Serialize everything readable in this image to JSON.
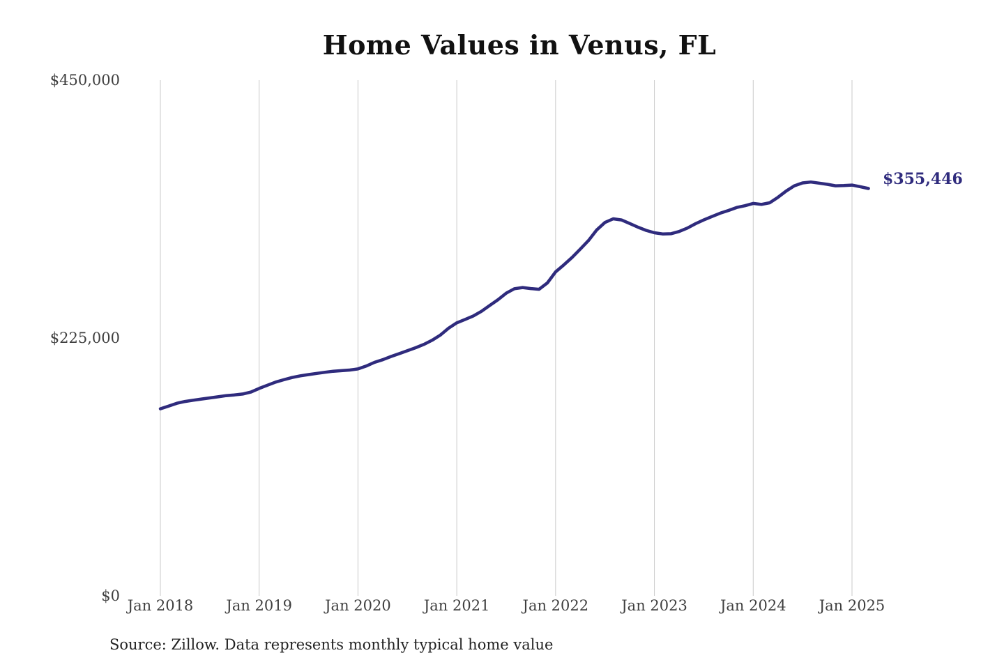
{
  "chart_data": {
    "type": "line",
    "title": "Home Values in Venus, FL",
    "source_note": "Source: Zillow. Data represents monthly typical home value",
    "xlabel": "",
    "ylabel": "",
    "frequency": "monthly",
    "x_start": "Jan 2018",
    "x_end": "Mar 2025",
    "x_tick_labels": [
      "Jan 2018",
      "Jan 2019",
      "Jan 2020",
      "Jan 2021",
      "Jan 2022",
      "Jan 2023",
      "Jan 2024",
      "Jan 2025"
    ],
    "y_tick_labels": [
      "$0",
      "$225,000",
      "$450,000"
    ],
    "y_tick_values": [
      0,
      225000,
      450000
    ],
    "ylim": [
      0,
      450000
    ],
    "grid": "vertical-only",
    "legend": "none",
    "end_label": "$355,446",
    "end_value": 355446,
    "series": [
      {
        "name": "Typical home value",
        "values": [
          163200,
          165600,
          168000,
          169600,
          170700,
          171700,
          172700,
          173700,
          174700,
          175300,
          176100,
          177800,
          181000,
          183800,
          186500,
          188600,
          190500,
          192000,
          193100,
          194100,
          195100,
          196000,
          196500,
          197000,
          198000,
          200500,
          203700,
          206000,
          208800,
          211300,
          213900,
          216500,
          219400,
          223000,
          227500,
          233500,
          238200,
          241200,
          244200,
          248300,
          253400,
          258400,
          264100,
          268000,
          269000,
          268100,
          267500,
          273000,
          282700,
          288800,
          295300,
          302600,
          310100,
          319300,
          325800,
          329000,
          328000,
          324900,
          321700,
          318900,
          316800,
          315800,
          316000,
          317900,
          320900,
          324700,
          328000,
          331000,
          333900,
          336300,
          338900,
          340400,
          342400,
          341600,
          343000,
          347700,
          353200,
          357800,
          360300,
          361100,
          360100,
          359100,
          357800,
          358000,
          358400,
          357000,
          355446
        ]
      }
    ],
    "colors": {
      "line": "#2f2b7d",
      "grid": "#c9c9c9",
      "tick_text": "#3f3f3f",
      "title_text": "#111111",
      "source_text": "#222222",
      "background": "#ffffff"
    }
  }
}
